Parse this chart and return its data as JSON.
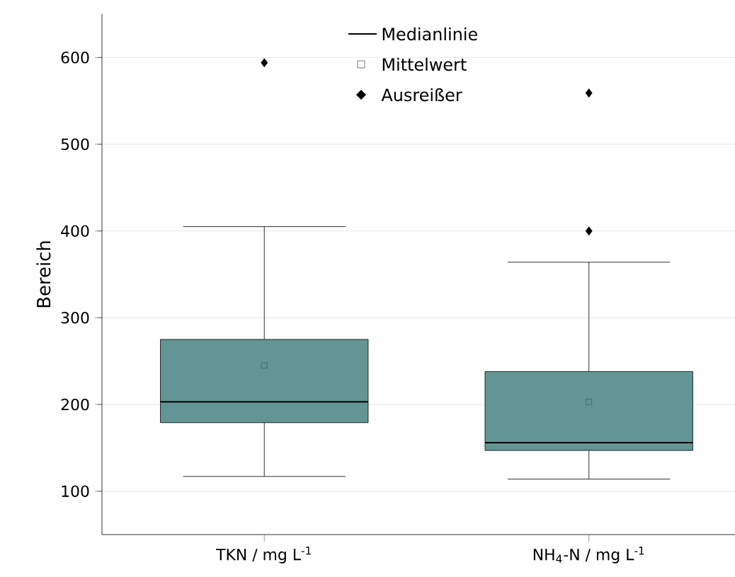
{
  "chart_data": {
    "type": "box",
    "ylabel": "Bereich",
    "categories": [
      "TKN / mg L$^{-1}$",
      "NH$_{4}$-N / mg L$^{-1}$"
    ],
    "color": "#629593",
    "boxes": [
      {
        "low": 117,
        "q1": 179,
        "median": 203,
        "q3": 275,
        "high": 405,
        "mean": 245,
        "outliers": [
          594
        ]
      },
      {
        "low": 114,
        "q1": 147,
        "median": 156,
        "q3": 238,
        "high": 364,
        "mean": 203,
        "outliers": [
          400,
          559
        ]
      }
    ],
    "ylim": [
      50,
      650
    ],
    "yticks": [
      100,
      200,
      300,
      400,
      500,
      600
    ],
    "grid": "y",
    "annotations": [
      "Medianlinie",
      "Mittelwert",
      "Ausreißer"
    ]
  }
}
